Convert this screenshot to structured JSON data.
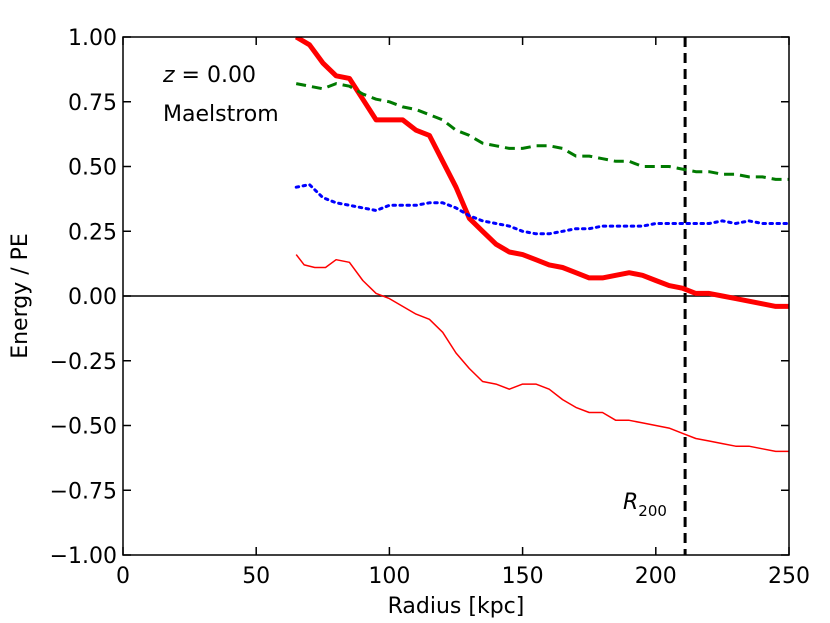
{
  "chart_data": {
    "type": "line",
    "title": "",
    "xlabel": "Radius [kpc]",
    "ylabel": "Energy / PE",
    "xlim": [
      0,
      250
    ],
    "ylim": [
      -1.0,
      1.0
    ],
    "xticks": [
      0,
      50,
      100,
      150,
      200,
      250
    ],
    "xtick_labels": [
      "0",
      "50",
      "100",
      "150",
      "200",
      "250"
    ],
    "yticks": [
      -1.0,
      -0.75,
      -0.5,
      -0.25,
      0.0,
      0.25,
      0.5,
      0.75,
      1.0
    ],
    "ytick_labels": [
      "−1.00",
      "−0.75",
      "−0.50",
      "−0.25",
      "0.00",
      "0.25",
      "0.50",
      "0.75",
      "1.00"
    ],
    "grid": false,
    "annotations": {
      "redshift_var": "z",
      "redshift_rest": " = 0.00",
      "simulation": "Maelstrom",
      "r200_main": "R",
      "r200_sub": "200"
    },
    "reference_lines": {
      "horizontal_y": 0.0,
      "r200_x": 211
    },
    "series": [
      {
        "name": "total-thick-red",
        "color": "#ff0000",
        "style": "solid",
        "width": 5,
        "x": [
          65,
          70,
          75,
          80,
          85,
          90,
          95,
          100,
          105,
          110,
          115,
          120,
          125,
          130,
          135,
          140,
          145,
          150,
          155,
          160,
          165,
          170,
          175,
          180,
          185,
          190,
          195,
          200,
          205,
          210,
          215,
          220,
          225,
          230,
          235,
          240,
          245,
          250
        ],
        "values": [
          1.0,
          0.97,
          0.9,
          0.85,
          0.84,
          0.76,
          0.68,
          0.68,
          0.68,
          0.64,
          0.62,
          0.52,
          0.42,
          0.3,
          0.25,
          0.2,
          0.17,
          0.16,
          0.14,
          0.12,
          0.11,
          0.09,
          0.07,
          0.07,
          0.08,
          0.09,
          0.08,
          0.06,
          0.04,
          0.03,
          0.01,
          0.01,
          0.0,
          -0.01,
          -0.02,
          -0.03,
          -0.04,
          -0.04
        ]
      },
      {
        "name": "green-dashed",
        "color": "#007a00",
        "style": "dashed",
        "width": 3,
        "x": [
          65,
          70,
          75,
          80,
          85,
          90,
          95,
          100,
          105,
          110,
          115,
          120,
          125,
          130,
          135,
          140,
          145,
          150,
          155,
          160,
          165,
          170,
          175,
          180,
          185,
          190,
          195,
          200,
          205,
          210,
          215,
          220,
          225,
          230,
          235,
          240,
          245,
          250
        ],
        "values": [
          0.82,
          0.81,
          0.8,
          0.82,
          0.81,
          0.78,
          0.76,
          0.75,
          0.73,
          0.72,
          0.7,
          0.68,
          0.64,
          0.62,
          0.59,
          0.58,
          0.57,
          0.57,
          0.58,
          0.58,
          0.57,
          0.54,
          0.54,
          0.53,
          0.52,
          0.52,
          0.5,
          0.5,
          0.5,
          0.49,
          0.48,
          0.48,
          0.47,
          0.47,
          0.46,
          0.46,
          0.45,
          0.45
        ]
      },
      {
        "name": "blue-dotted",
        "color": "#0000ff",
        "style": "dotted",
        "width": 3,
        "x": [
          65,
          70,
          75,
          80,
          85,
          90,
          95,
          100,
          105,
          110,
          115,
          120,
          125,
          130,
          135,
          140,
          145,
          150,
          155,
          160,
          165,
          170,
          175,
          180,
          185,
          190,
          195,
          200,
          205,
          210,
          215,
          220,
          225,
          230,
          235,
          240,
          245,
          250
        ],
        "values": [
          0.42,
          0.43,
          0.38,
          0.36,
          0.35,
          0.34,
          0.33,
          0.35,
          0.35,
          0.35,
          0.36,
          0.36,
          0.34,
          0.31,
          0.29,
          0.28,
          0.27,
          0.25,
          0.24,
          0.24,
          0.25,
          0.26,
          0.26,
          0.27,
          0.27,
          0.27,
          0.27,
          0.28,
          0.28,
          0.28,
          0.28,
          0.28,
          0.29,
          0.28,
          0.29,
          0.28,
          0.28,
          0.28
        ]
      },
      {
        "name": "thin-red",
        "color": "#ff0000",
        "style": "solid",
        "width": 1.5,
        "x": [
          65,
          68,
          72,
          76,
          80,
          85,
          90,
          95,
          100,
          105,
          110,
          115,
          120,
          125,
          130,
          135,
          140,
          145,
          150,
          155,
          160,
          165,
          170,
          175,
          180,
          185,
          190,
          195,
          200,
          205,
          210,
          215,
          220,
          225,
          230,
          235,
          240,
          245,
          250
        ],
        "values": [
          0.16,
          0.12,
          0.11,
          0.11,
          0.14,
          0.13,
          0.06,
          0.01,
          -0.01,
          -0.04,
          -0.07,
          -0.09,
          -0.14,
          -0.22,
          -0.28,
          -0.33,
          -0.34,
          -0.36,
          -0.34,
          -0.34,
          -0.36,
          -0.4,
          -0.43,
          -0.45,
          -0.45,
          -0.48,
          -0.48,
          -0.49,
          -0.5,
          -0.51,
          -0.53,
          -0.55,
          -0.56,
          -0.57,
          -0.58,
          -0.58,
          -0.59,
          -0.6,
          -0.6
        ]
      }
    ]
  }
}
